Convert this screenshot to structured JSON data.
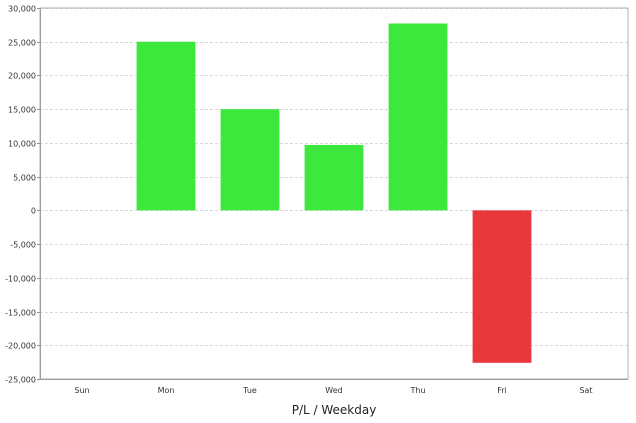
{
  "chart_data": {
    "type": "bar",
    "title": "",
    "xlabel": "P/L / Weekday",
    "ylabel": "",
    "categories": [
      "Sun",
      "Mon",
      "Tue",
      "Wed",
      "Thu",
      "Fri",
      "Sat"
    ],
    "values": [
      null,
      25000,
      15000,
      9700,
      27700,
      -22600,
      null
    ],
    "ylim": [
      -25000,
      30000
    ],
    "yticks": [
      30000,
      25000,
      20000,
      15000,
      10000,
      5000,
      0,
      -5000,
      -10000,
      -15000,
      -20000,
      -25000
    ],
    "ytick_labels": [
      "30,000",
      "25,000",
      "20,000",
      "15,000",
      "10,000",
      "5,000",
      "0",
      "-5,000",
      "-10,000",
      "-15,000",
      "-20,000",
      "-25,000"
    ],
    "grid": true,
    "colors": {
      "positive": "#3de83d",
      "negative": "#e8373d",
      "grid": "#d8d8d8",
      "axis": "#888888"
    }
  }
}
